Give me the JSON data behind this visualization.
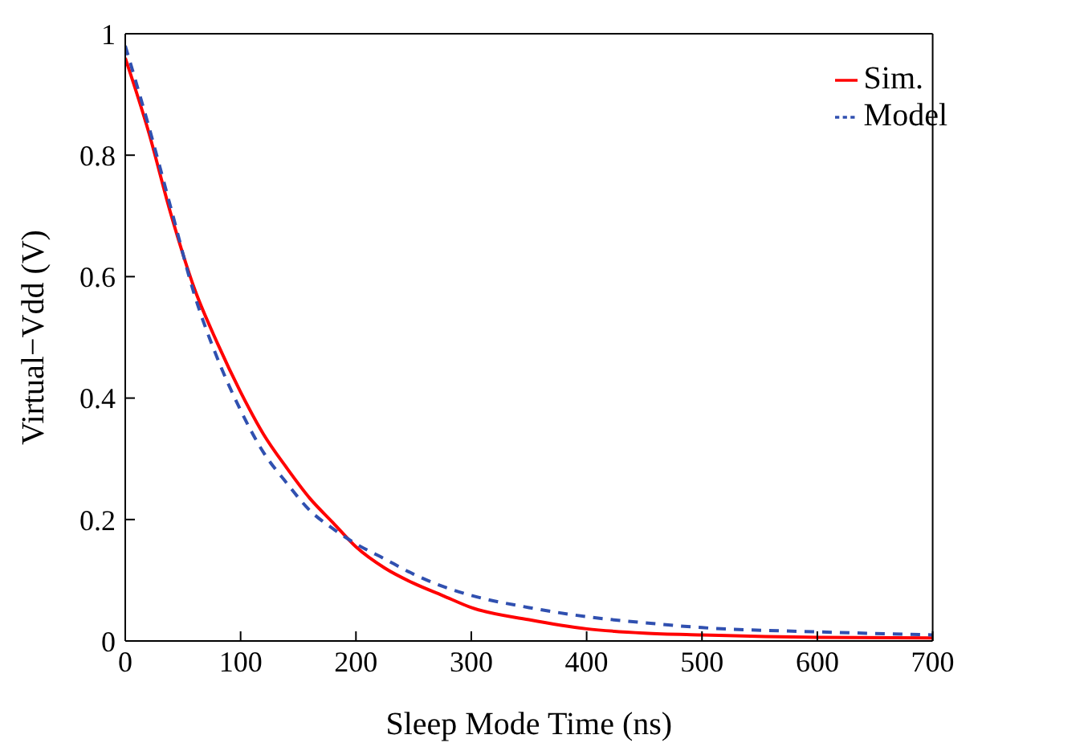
{
  "chart_data": {
    "type": "line",
    "xlabel": "Sleep Mode Time (ns)",
    "ylabel": "Virtual−Vdd (V)",
    "x": [
      0,
      20,
      40,
      60,
      80,
      100,
      120,
      140,
      160,
      180,
      200,
      225,
      250,
      275,
      300,
      350,
      400,
      450,
      500,
      600,
      700
    ],
    "series": [
      {
        "name": "Sim.",
        "color": "#ff0000",
        "line_style": "solid",
        "values": [
          0.96,
          0.84,
          0.7,
          0.58,
          0.49,
          0.41,
          0.34,
          0.285,
          0.235,
          0.195,
          0.155,
          0.12,
          0.095,
          0.075,
          0.055,
          0.035,
          0.02,
          0.013,
          0.01,
          0.006,
          0.005
        ]
      },
      {
        "name": "Model",
        "color": "#3050b0",
        "line_style": "dashed",
        "values": [
          0.98,
          0.85,
          0.71,
          0.57,
          0.465,
          0.38,
          0.31,
          0.26,
          0.215,
          0.185,
          0.16,
          0.135,
          0.11,
          0.09,
          0.075,
          0.055,
          0.04,
          0.03,
          0.022,
          0.015,
          0.01
        ]
      }
    ],
    "xlim": [
      0,
      700
    ],
    "xticks": [
      0,
      100,
      200,
      300,
      400,
      500,
      600,
      700
    ],
    "ylim": [
      0,
      1
    ],
    "yticks": [
      0,
      0.2,
      0.4,
      0.6,
      0.8,
      1
    ],
    "grid": false,
    "legend": "top right",
    "marker": "none"
  }
}
